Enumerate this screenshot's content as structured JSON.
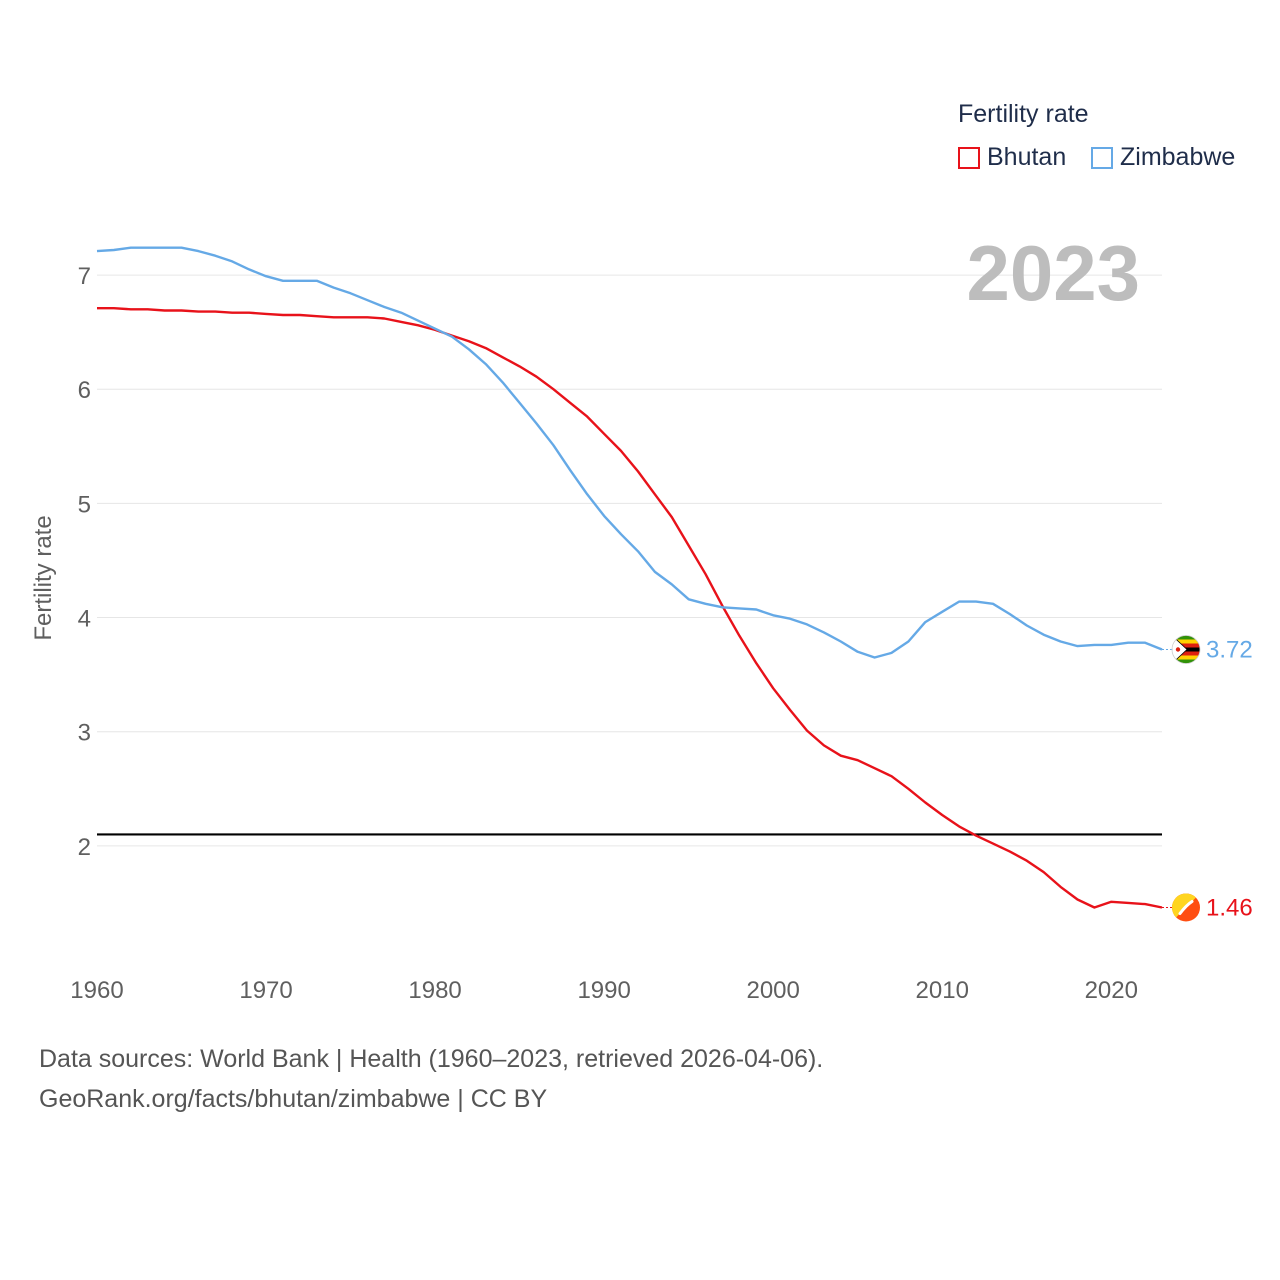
{
  "legend": {
    "title": "Fertility rate"
  },
  "footer": {
    "line1": "Data sources: World Bank | Health (1960–2023, retrieved 2026-04-06).",
    "line2": "GeoRank.org/facts/bhutan/zimbabwe | CC BY"
  },
  "colors": {
    "bhutan": "#e8121a",
    "zimbabwe": "#65a9e6",
    "grid": "#e6e6e6",
    "tick": "#5f5f5f",
    "year": "#bdbdbd",
    "reference": "#000000"
  },
  "chart_data": {
    "type": "line",
    "title": "",
    "year_label": "2023",
    "xlabel": "",
    "ylabel": "Fertility rate",
    "xlim": [
      1960,
      2023
    ],
    "ylim": [
      1.0,
      7.5
    ],
    "x_ticks": [
      "1960",
      "1970",
      "1980",
      "1990",
      "2000",
      "2010",
      "2020"
    ],
    "y_ticks": [
      "2",
      "3",
      "4",
      "5",
      "6",
      "7"
    ],
    "reference_line": 2.1,
    "x": [
      1960,
      1961,
      1962,
      1963,
      1964,
      1965,
      1966,
      1967,
      1968,
      1969,
      1970,
      1971,
      1972,
      1973,
      1974,
      1975,
      1976,
      1977,
      1978,
      1979,
      1980,
      1981,
      1982,
      1983,
      1984,
      1985,
      1986,
      1987,
      1988,
      1989,
      1990,
      1991,
      1992,
      1993,
      1994,
      1995,
      1996,
      1997,
      1998,
      1999,
      2000,
      2001,
      2002,
      2003,
      2004,
      2005,
      2006,
      2007,
      2008,
      2009,
      2010,
      2011,
      2012,
      2013,
      2014,
      2015,
      2016,
      2017,
      2018,
      2019,
      2020,
      2021,
      2022,
      2023
    ],
    "series": [
      {
        "name": "Bhutan",
        "color": "#e8121a",
        "end_label": "1.46",
        "values": [
          6.71,
          6.71,
          6.7,
          6.7,
          6.69,
          6.69,
          6.68,
          6.68,
          6.67,
          6.67,
          6.66,
          6.65,
          6.65,
          6.64,
          6.63,
          6.63,
          6.63,
          6.62,
          6.59,
          6.56,
          6.52,
          6.47,
          6.42,
          6.36,
          6.28,
          6.2,
          6.11,
          6.0,
          5.88,
          5.76,
          5.61,
          5.46,
          5.28,
          5.08,
          4.88,
          4.63,
          4.38,
          4.1,
          3.84,
          3.6,
          3.38,
          3.19,
          3.01,
          2.88,
          2.79,
          2.75,
          2.68,
          2.61,
          2.5,
          2.38,
          2.27,
          2.17,
          2.09,
          2.02,
          1.95,
          1.87,
          1.77,
          1.64,
          1.53,
          1.46,
          1.51,
          1.5,
          1.49,
          1.46
        ]
      },
      {
        "name": "Zimbabwe",
        "color": "#65a9e6",
        "end_label": "3.72",
        "values": [
          7.21,
          7.22,
          7.24,
          7.24,
          7.24,
          7.24,
          7.21,
          7.17,
          7.12,
          7.05,
          6.99,
          6.95,
          6.95,
          6.95,
          6.89,
          6.84,
          6.78,
          6.72,
          6.67,
          6.6,
          6.53,
          6.46,
          6.35,
          6.22,
          6.06,
          5.88,
          5.7,
          5.51,
          5.29,
          5.08,
          4.89,
          4.73,
          4.58,
          4.4,
          4.29,
          4.16,
          4.12,
          4.09,
          4.08,
          4.07,
          4.02,
          3.99,
          3.94,
          3.87,
          3.79,
          3.7,
          3.65,
          3.69,
          3.79,
          3.96,
          4.05,
          4.14,
          4.14,
          4.12,
          4.03,
          3.93,
          3.85,
          3.79,
          3.75,
          3.76,
          3.76,
          3.78,
          3.78,
          3.72
        ]
      }
    ]
  }
}
